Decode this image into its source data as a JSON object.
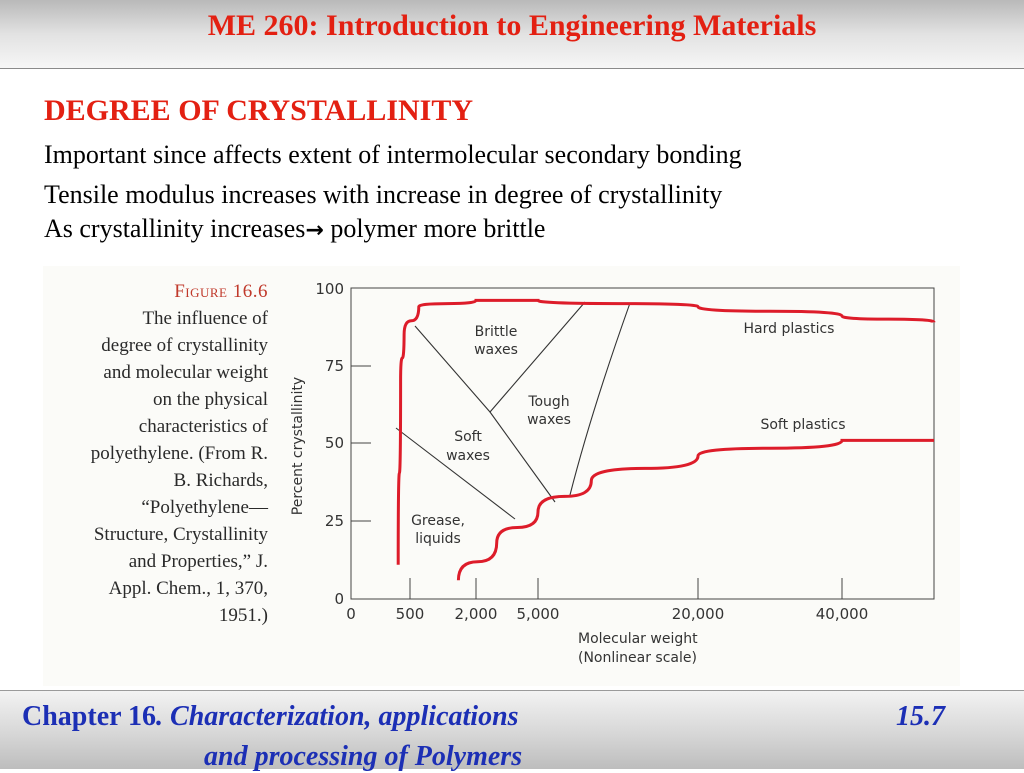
{
  "header": {
    "title": "ME 260: Introduction to Engineering Materials"
  },
  "content": {
    "heading": "DEGREE OF CRYSTALLINITY",
    "line1": "Important since affects extent of intermolecular secondary bonding",
    "line2": "Tensile modulus increases with increase in degree of crystallinity",
    "line3_before": "As crystallinity increases",
    "line3_arrow": "→",
    "line3_after": " polymer more brittle"
  },
  "figure": {
    "caption_title": "Figure 16.6",
    "caption_lines": [
      "The influence of",
      "degree of crystallinity",
      "and molecular weight",
      "on the physical",
      "characteristics of",
      "polyethylene. (From R.",
      "B. Richards,",
      "“Polyethylene—",
      "Structure, Crystallinity",
      "and Properties,” J.",
      "Appl. Chem., 1, 370,",
      "1951.)"
    ]
  },
  "chart_data": {
    "type": "line",
    "ylabel": "Percent crystallinity",
    "xlabel": "Molecular weight",
    "xlabel2": "(Nonlinear scale)",
    "ylim": [
      0,
      100
    ],
    "x_ticks": [
      "0",
      "500",
      "2,000",
      "5,000",
      "20,000",
      "40,000"
    ],
    "y_ticks": [
      0,
      25,
      50,
      75,
      100
    ],
    "region_labels": [
      "Brittle",
      "waxes",
      "Tough",
      "waxes",
      "Soft",
      "waxes",
      "Grease,",
      "liquids",
      "Hard plastics",
      "Soft plastics"
    ],
    "series": [
      {
        "values": [
          [
            400,
            11
          ],
          [
            420,
            70
          ],
          [
            450,
            85
          ],
          [
            700,
            94
          ],
          [
            2000,
            96
          ],
          [
            5000,
            96
          ],
          [
            20000,
            94
          ],
          [
            40000,
            91
          ],
          [
            60000,
            89
          ]
        ]
      },
      {
        "values": [
          [
            1600,
            6
          ],
          [
            3000,
            18
          ],
          [
            5000,
            28
          ],
          [
            10000,
            38
          ],
          [
            20000,
            46
          ],
          [
            40000,
            51
          ],
          [
            60000,
            51
          ]
        ]
      }
    ],
    "line_color": "#dd1c2a"
  },
  "footer": {
    "chapter": "Chapter 16",
    "subtitle_1": ". Characterization, applications",
    "subtitle_2": "and processing of Polymers",
    "page": "15.7"
  }
}
